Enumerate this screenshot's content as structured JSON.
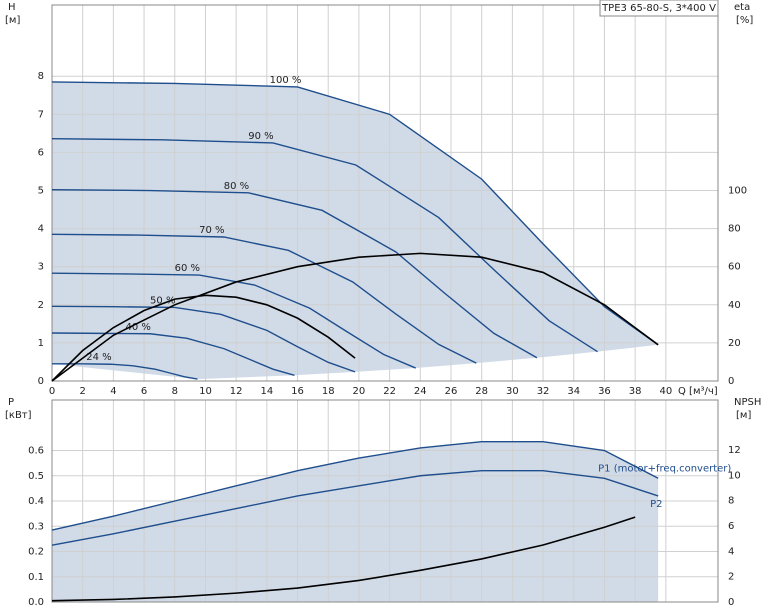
{
  "chart_data": [
    {
      "type": "line",
      "title": "TPE3 65-80-S, 3*400 V",
      "x_label": "Q [м³/ч]",
      "y_label": "H",
      "y_unit": "[м]",
      "y2_label": "eta",
      "y2_unit": "[%]",
      "xlim": [
        0,
        43.4
      ],
      "ylim": [
        0,
        9.87
      ],
      "y2lim": [
        0,
        197.4
      ],
      "xticks": [
        0,
        2,
        4,
        6,
        8,
        10,
        12,
        14,
        16,
        18,
        20,
        22,
        24,
        26,
        28,
        30,
        32,
        34,
        36,
        38,
        40
      ],
      "yticks": [
        0,
        1,
        2,
        3,
        4,
        5,
        6,
        7,
        8
      ],
      "y2ticks": [
        0,
        20,
        40,
        60,
        80,
        100
      ],
      "grid": true,
      "series": [
        {
          "name": "100 %",
          "color": "#1f4e8c",
          "x": [
            0,
            8,
            16,
            22,
            28,
            32,
            36,
            39.5
          ],
          "values": [
            7.85,
            7.81,
            7.72,
            7.0,
            5.3,
            3.6,
            1.95,
            0.95
          ]
        },
        {
          "name": "90 %",
          "color": "#1f4e8c",
          "x": [
            0,
            7.2,
            14.4,
            19.8,
            25.2,
            28.8,
            32.4,
            35.55
          ],
          "values": [
            6.36,
            6.33,
            6.25,
            5.67,
            4.29,
            2.92,
            1.58,
            0.77
          ]
        },
        {
          "name": "80 %",
          "color": "#1f4e8c",
          "x": [
            0,
            6.4,
            12.8,
            17.6,
            22.4,
            25.6,
            28.8,
            31.6
          ],
          "values": [
            5.02,
            5.0,
            4.94,
            4.48,
            3.39,
            2.3,
            1.25,
            0.61
          ]
        },
        {
          "name": "70 %",
          "color": "#1f4e8c",
          "x": [
            0,
            5.6,
            11.2,
            15.4,
            19.6,
            22.4,
            25.2,
            27.65
          ],
          "values": [
            3.85,
            3.83,
            3.78,
            3.43,
            2.6,
            1.76,
            0.96,
            0.47
          ]
        },
        {
          "name": "60 %",
          "color": "#1f4e8c",
          "x": [
            0,
            4.8,
            9.6,
            13.2,
            16.8,
            19.2,
            21.6,
            23.7
          ],
          "values": [
            2.83,
            2.81,
            2.78,
            2.52,
            1.91,
            1.3,
            0.7,
            0.34
          ]
        },
        {
          "name": "50 %",
          "color": "#1f4e8c",
          "x": [
            0,
            4,
            8,
            11,
            14,
            16,
            18,
            19.75
          ],
          "values": [
            1.96,
            1.95,
            1.93,
            1.75,
            1.33,
            0.9,
            0.49,
            0.24
          ]
        },
        {
          "name": "40 %",
          "color": "#1f4e8c",
          "x": [
            0,
            3.2,
            6.4,
            8.8,
            11.2,
            12.8,
            14.4,
            15.8
          ],
          "values": [
            1.26,
            1.25,
            1.24,
            1.12,
            0.85,
            0.58,
            0.31,
            0.15
          ]
        },
        {
          "name": "24 %",
          "color": "#1f4e8c",
          "x": [
            0,
            1.92,
            3.84,
            5.28,
            6.72,
            7.68,
            8.64,
            9.48
          ],
          "values": [
            0.45,
            0.45,
            0.44,
            0.4,
            0.31,
            0.21,
            0.11,
            0.05
          ]
        },
        {
          "color": "#000000",
          "axis": "y2",
          "x": [
            0,
            4,
            8,
            12,
            16,
            20,
            24,
            28,
            32,
            36,
            39.5
          ],
          "values": [
            0,
            24,
            40,
            52,
            60,
            65,
            67,
            65,
            57,
            40,
            19
          ]
        },
        {
          "color": "#000000",
          "axis": "y2",
          "x": [
            0,
            2,
            4,
            6,
            8,
            10,
            12,
            14,
            16,
            18,
            19.75
          ],
          "values": [
            0,
            16,
            28,
            37,
            43,
            45,
            44,
            40,
            33,
            23,
            12
          ]
        }
      ]
    },
    {
      "type": "line",
      "y_label": "P",
      "y_unit": "[кВт]",
      "y2_label": "NPSH",
      "y2_unit": "[м]",
      "xlim": [
        0,
        43.4
      ],
      "ylim": [
        0,
        0.8
      ],
      "y2lim": [
        0,
        15.95
      ],
      "xticks": [
        0,
        2,
        4,
        6,
        8,
        10,
        12,
        14,
        16,
        18,
        20,
        22,
        24,
        26,
        28,
        30,
        32,
        34,
        36,
        38,
        40
      ],
      "yticks": [
        {
          "value": 0,
          "label": "0.0"
        },
        0.1,
        0.2,
        0.3,
        0.4,
        0.5,
        0.6
      ],
      "y2ticks": [
        0,
        2,
        4,
        6,
        8,
        10,
        12
      ],
      "grid": true,
      "series": [
        {
          "name": "P1 (motor+freq.converter)",
          "color": "#1f4e8c",
          "x": [
            0,
            4,
            8,
            12,
            16,
            20,
            24,
            28,
            32,
            36,
            39.5
          ],
          "values": [
            0.285,
            0.34,
            0.4,
            0.46,
            0.52,
            0.57,
            0.61,
            0.635,
            0.635,
            0.6,
            0.49
          ]
        },
        {
          "name": "P2",
          "color": "#1f4e8c",
          "x": [
            0,
            4,
            8,
            12,
            16,
            20,
            24,
            28,
            32,
            36,
            39.5
          ],
          "values": [
            0.225,
            0.27,
            0.32,
            0.37,
            0.42,
            0.46,
            0.5,
            0.52,
            0.52,
            0.49,
            0.42
          ]
        },
        {
          "color": "#000000",
          "axis": "y2",
          "x": [
            0,
            4,
            8,
            12,
            16,
            20,
            24,
            28,
            32,
            36,
            38
          ],
          "values": [
            0.1,
            0.2,
            0.4,
            0.7,
            1.1,
            1.7,
            2.5,
            3.4,
            4.5,
            5.9,
            6.7
          ]
        }
      ]
    }
  ]
}
